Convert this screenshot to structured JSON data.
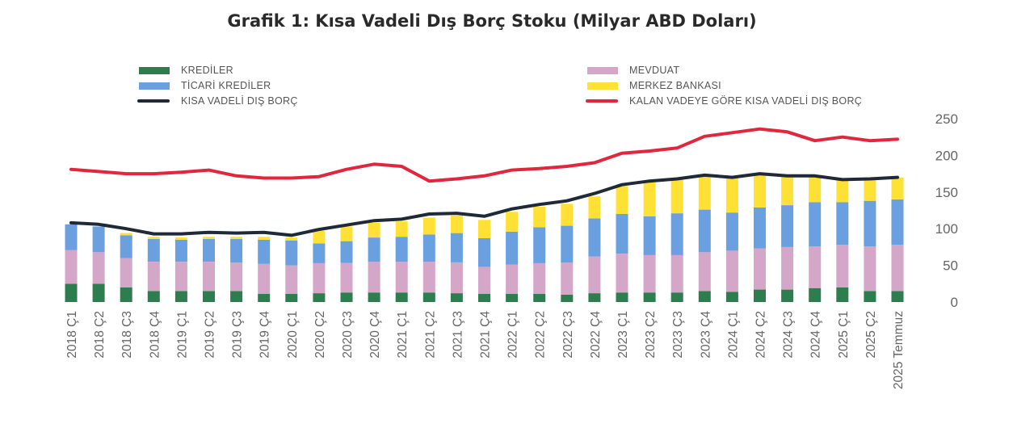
{
  "chart_data": {
    "type": "bar",
    "title": "Grafik 1: Kısa Vadeli Dış Borç Stoku (Milyar ABD Doları)",
    "stacked": true,
    "ylim": [
      0,
      250
    ],
    "y_ticks": [
      0,
      50,
      100,
      150,
      200,
      250
    ],
    "y_axis_side": "right",
    "legend_position": "top",
    "categories": [
      "2018 Ç1",
      "2018 Ç2",
      "2018 Ç3",
      "2018 Ç4",
      "2019 Ç1",
      "2019 Ç2",
      "2019 Ç3",
      "2019 Ç4",
      "2020 Ç1",
      "2020 Ç2",
      "2020 Ç3",
      "2020 Ç4",
      "2021 Ç1",
      "2021 Ç2",
      "2021 Ç3",
      "2021 Ç4",
      "2022 Ç1",
      "2022 Ç2",
      "2022 Ç3",
      "2022 Ç4",
      "2023 Ç1",
      "2023 Ç2",
      "2023 Ç3",
      "2023 Ç4",
      "2024 Ç1",
      "2024 Ç2",
      "2024 Ç3",
      "2024 Ç4",
      "2025 Ç1",
      "2025 Ç2",
      "2025 Temmuz"
    ],
    "series": [
      {
        "name": "KREDİLER",
        "kind": "bar",
        "color": "#2e7d4f",
        "values": [
          25,
          25,
          20,
          15,
          15,
          15,
          15,
          11,
          11,
          12,
          13,
          13,
          13,
          13,
          12,
          11,
          11,
          11,
          10,
          12,
          13,
          13,
          13,
          15,
          14,
          17,
          17,
          19,
          20,
          15,
          15
        ]
      },
      {
        "name": "MEVDUAT",
        "kind": "bar",
        "color": "#d4a6c8",
        "values": [
          46,
          43,
          40,
          40,
          40,
          40,
          39,
          41,
          39,
          41,
          40,
          42,
          42,
          42,
          42,
          37,
          40,
          42,
          44,
          50,
          53,
          51,
          51,
          53,
          56,
          56,
          58,
          57,
          58,
          61,
          63
        ]
      },
      {
        "name": "TİCARİ KREDİLER",
        "kind": "bar",
        "color": "#6a9fe0",
        "values": [
          35,
          35,
          31,
          31,
          30,
          31,
          32,
          33,
          34,
          27,
          30,
          33,
          34,
          37,
          40,
          39,
          45,
          49,
          50,
          52,
          54,
          53,
          57,
          58,
          52,
          56,
          57,
          60,
          58,
          62,
          62
        ]
      },
      {
        "name": "MERKEZ BANKASI",
        "kind": "bar",
        "color": "#ffe135",
        "values": [
          0,
          0,
          3,
          3,
          3,
          3,
          3,
          4,
          4,
          17,
          20,
          20,
          21,
          23,
          24,
          25,
          27,
          28,
          30,
          30,
          38,
          46,
          46,
          46,
          47,
          45,
          40,
          37,
          30,
          29,
          30
        ]
      },
      {
        "name": "KISA VADELİ DIŞ BORÇ",
        "kind": "line",
        "color": "#1f2a36",
        "values": [
          108,
          106,
          100,
          93,
          93,
          95,
          94,
          95,
          91,
          99,
          105,
          111,
          113,
          120,
          121,
          117,
          127,
          133,
          138,
          148,
          160,
          165,
          168,
          173,
          170,
          175,
          172,
          172,
          167,
          168,
          170
        ]
      },
      {
        "name": "KALAN VADEYE GÖRE KISA VADELİ DIŞ BORÇ",
        "kind": "line",
        "color": "#e0273e",
        "values": [
          181,
          178,
          175,
          175,
          177,
          180,
          172,
          169,
          169,
          171,
          181,
          188,
          185,
          165,
          168,
          172,
          180,
          182,
          185,
          190,
          203,
          206,
          210,
          226,
          231,
          236,
          232,
          220,
          225,
          220,
          222
        ]
      }
    ]
  },
  "legend": [
    {
      "label": "KREDİLER",
      "type": "box",
      "color": "#2e7d4f"
    },
    {
      "label": "TİCARİ KREDİLER",
      "type": "box",
      "color": "#6a9fe0"
    },
    {
      "label": "KISA VADELİ DIŞ BORÇ",
      "type": "line",
      "color": "#1f2a36"
    },
    {
      "label": "MEVDUAT",
      "type": "box",
      "color": "#d4a6c8"
    },
    {
      "label": "MERKEZ BANKASI",
      "type": "box",
      "color": "#ffe135"
    },
    {
      "label": "KALAN VADEYE GÖRE KISA VADELİ DIŞ BORÇ",
      "type": "line",
      "color": "#e0273e"
    }
  ]
}
